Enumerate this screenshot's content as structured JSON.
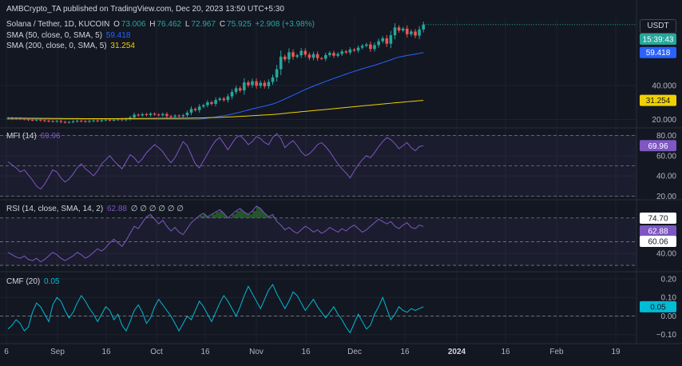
{
  "header": {
    "published_by": "AMBCrypto_TA published on TradingView.com, Dec 20, 2023 13:50 UTC+5:30",
    "symbol": "Solana / Tether, 1D, KUCOIN",
    "o_label": "O",
    "o_value": "73.006",
    "h_label": "H",
    "h_value": "76.462",
    "l_label": "L",
    "l_value": "72.967",
    "c_label": "C",
    "c_value": "75.925",
    "change": "+2.908 (+3.98%)",
    "sma50_label": "SMA (50, close, 0, SMA, 5)",
    "sma50_value": "59.418",
    "sma200_label": "SMA (200, close, 0, SMA, 5)",
    "sma200_value": "31.254",
    "mfi_label": "MFI (14)",
    "mfi_value": "69.96",
    "rsi_label": "RSI (14, close, SMA, 14, 2)",
    "rsi_value": "62.88",
    "rsi_extra": "∅ ∅ ∅ ∅ ∅ ∅",
    "cmf_label": "CMF (20)",
    "cmf_value": "0.05"
  },
  "currency_button": "USDT",
  "price_tags": {
    "countdown": "15:39:43",
    "sma50": "59.418",
    "sma200": "31.254",
    "mfi": "69.96",
    "rsi_upper": "74.70",
    "rsi": "62.88",
    "rsi_ma": "60.06",
    "cmf": "0.05"
  },
  "colors": {
    "background": "#131722",
    "up": "#26a69a",
    "down": "#ef5350",
    "sma50": "#2962ff",
    "sma200": "#f0d000",
    "mfi": "#7e57c2",
    "rsi": "#7e57c2",
    "cmf": "#00bcd4",
    "rsi_overbought_fill": "#2e7d32"
  },
  "chart_data": [
    {
      "type": "candlestick",
      "title": "Solana / Tether, 1D, KUCOIN",
      "x_ticks": [
        "6",
        "Sep",
        "16",
        "Oct",
        "16",
        "Nov",
        "16",
        "Dec",
        "16",
        "2024",
        "16",
        "Feb",
        "19"
      ],
      "y_ticks": [
        20.0,
        40.0
      ],
      "ylim": [
        16,
        80
      ],
      "close": [
        20.8,
        20.4,
        20.6,
        20.3,
        20.1,
        19.8,
        19.6,
        19.9,
        19.5,
        19.2,
        19.0,
        18.9,
        19.1,
        18.6,
        18.3,
        18.5,
        18.9,
        19.2,
        19.0,
        18.8,
        19.1,
        19.4,
        19.1,
        19.6,
        19.9,
        19.5,
        19.8,
        20.1,
        19.7,
        20.3,
        21.2,
        22.8,
        22.4,
        23.1,
        22.6,
        23.4,
        22.9,
        22.5,
        23.2,
        22.0,
        21.7,
        22.3,
        21.9,
        22.5,
        24.0,
        26.2,
        25.5,
        27.6,
        28.4,
        30.1,
        29.2,
        31.5,
        32.3,
        31.4,
        33.6,
        36.2,
        38.4,
        37.1,
        41.8,
        40.2,
        42.5,
        39.8,
        41.6,
        39.6,
        42.1,
        44.8,
        49.6,
        57.0,
        55.4,
        59.6,
        56.9,
        57.8,
        60.4,
        58.2,
        56.3,
        58.5,
        56.1,
        55.8,
        57.9,
        59.2,
        57.5,
        58.6,
        60.1,
        59.4,
        61.2,
        60.6,
        62.3,
        63.4,
        64.2,
        61.5,
        63.8,
        66.1,
        67.8,
        64.6,
        69.6,
        74.2,
        72.4,
        73.5,
        70.2,
        71.8,
        69.4,
        73.0,
        75.9
      ],
      "series": [
        {
          "name": "SMA (50, close, 0, SMA, 5)",
          "last": 59.418
        },
        {
          "name": "SMA (200, close, 0, SMA, 5)",
          "last": 31.254
        }
      ]
    },
    {
      "type": "line",
      "title": "MFI (14)",
      "y_ticks": [
        20.0,
        40.0,
        60.0,
        80.0
      ],
      "ylim": [
        18,
        86
      ],
      "bands": [
        20,
        50,
        80
      ],
      "values": [
        54,
        51,
        48,
        44,
        46,
        41,
        36,
        30,
        27,
        32,
        39,
        46,
        44,
        38,
        34,
        37,
        42,
        48,
        52,
        47,
        44,
        40,
        45,
        52,
        56,
        60,
        55,
        51,
        47,
        54,
        61,
        58,
        53,
        57,
        63,
        67,
        71,
        68,
        64,
        58,
        53,
        58,
        66,
        74,
        70,
        61,
        52,
        48,
        55,
        62,
        69,
        75,
        78,
        72,
        66,
        72,
        78,
        80,
        76,
        71,
        74,
        79,
        77,
        73,
        71,
        78,
        82,
        77,
        68,
        72,
        75,
        70,
        64,
        60,
        62,
        66,
        71,
        73,
        69,
        64,
        58,
        52,
        47,
        43,
        38,
        45,
        51,
        56,
        60,
        58,
        63,
        69,
        74,
        78,
        76,
        72,
        67,
        70,
        73,
        68,
        65,
        69,
        70
      ]
    },
    {
      "type": "line",
      "title": "RSI (14, close, SMA, 14, 2)",
      "y_ticks": [
        40.0
      ],
      "ylim": [
        26,
        84
      ],
      "bands": [
        30,
        50,
        70
      ],
      "values": [
        41,
        39,
        37,
        36,
        38,
        35,
        34,
        36,
        33,
        35,
        38,
        41,
        39,
        36,
        34,
        36,
        38,
        41,
        39,
        36,
        38,
        41,
        44,
        42,
        45,
        49,
        52,
        49,
        46,
        51,
        57,
        63,
        61,
        66,
        71,
        73,
        69,
        65,
        68,
        63,
        59,
        62,
        58,
        56,
        61,
        66,
        69,
        72,
        74,
        71,
        73,
        75,
        77,
        74,
        70,
        73,
        76,
        78,
        75,
        73,
        76,
        80,
        78,
        74,
        71,
        73,
        67,
        64,
        60,
        62,
        59,
        57,
        60,
        63,
        61,
        58,
        60,
        57,
        59,
        62,
        60,
        58,
        61,
        59,
        62,
        64,
        61,
        58,
        60,
        63,
        66,
        69,
        67,
        65,
        67,
        63,
        61,
        64,
        66,
        62,
        61,
        64,
        62.88
      ]
    },
    {
      "type": "line",
      "title": "CMF (20)",
      "y_ticks": [
        -0.1,
        0.0,
        0.1,
        0.2
      ],
      "ylim": [
        -0.14,
        0.23
      ],
      "values": [
        -0.07,
        -0.05,
        -0.02,
        -0.04,
        -0.08,
        -0.06,
        0.02,
        0.07,
        0.05,
        0.01,
        -0.03,
        0.06,
        0.1,
        0.08,
        0.03,
        -0.01,
        0.02,
        0.07,
        0.11,
        0.08,
        0.04,
        0.01,
        -0.03,
        0.01,
        0.05,
        0.03,
        -0.02,
        0.01,
        -0.05,
        -0.08,
        -0.03,
        0.03,
        0.06,
        0.02,
        -0.04,
        -0.01,
        0.05,
        0.09,
        0.06,
        0.03,
        0.0,
        -0.04,
        -0.08,
        -0.04,
        0.0,
        -0.02,
        0.03,
        0.08,
        0.05,
        0.01,
        -0.03,
        0.02,
        0.07,
        0.11,
        0.08,
        0.04,
        0.0,
        0.05,
        0.11,
        0.16,
        0.12,
        0.08,
        0.04,
        0.09,
        0.14,
        0.17,
        0.12,
        0.08,
        0.04,
        0.08,
        0.13,
        0.11,
        0.07,
        0.03,
        0.06,
        0.09,
        0.05,
        0.02,
        -0.01,
        0.02,
        0.05,
        0.01,
        -0.02,
        -0.06,
        -0.09,
        -0.04,
        0.01,
        -0.03,
        -0.07,
        -0.05,
        0.01,
        0.05,
        0.1,
        0.04,
        -0.02,
        0.01,
        0.05,
        0.03,
        0.02,
        0.04,
        0.03,
        0.04,
        0.05
      ]
    }
  ]
}
